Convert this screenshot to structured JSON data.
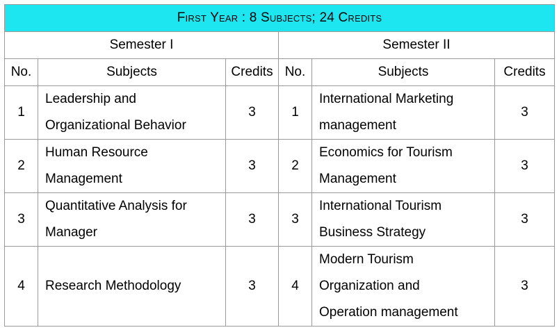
{
  "header": {
    "title": "First Year : 8 Subjects; 24 Credits",
    "background_color": "#1ee6f0"
  },
  "semesters": [
    {
      "label": "Semester I",
      "columns": {
        "no": "No.",
        "subjects": "Subjects",
        "credits": "Credits"
      },
      "rows": [
        {
          "no": "1",
          "subject_lines": [
            "Leadership and",
            "Organizational Behavior"
          ],
          "credits": "3"
        },
        {
          "no": "2",
          "subject_lines": [
            "Human Resource",
            "Management"
          ],
          "credits": "3"
        },
        {
          "no": "3",
          "subject_lines": [
            "Quantitative Analysis for",
            "Manager"
          ],
          "credits": "3"
        },
        {
          "no": "4",
          "subject_lines": [
            "Research Methodology"
          ],
          "credits": "3"
        }
      ]
    },
    {
      "label": "Semester II",
      "columns": {
        "no": "No.",
        "subjects": "Subjects",
        "credits": "Credits"
      },
      "rows": [
        {
          "no": "1",
          "subject_lines": [
            "International Marketing",
            "management"
          ],
          "credits": "3"
        },
        {
          "no": "2",
          "subject_lines": [
            "Economics for Tourism",
            "Management"
          ],
          "credits": "3"
        },
        {
          "no": "3",
          "subject_lines": [
            "International Tourism",
            "Business Strategy"
          ],
          "credits": "3"
        },
        {
          "no": "4",
          "subject_lines": [
            "Modern Tourism",
            "Organization and",
            "Operation management"
          ],
          "credits": "3"
        }
      ]
    }
  ]
}
